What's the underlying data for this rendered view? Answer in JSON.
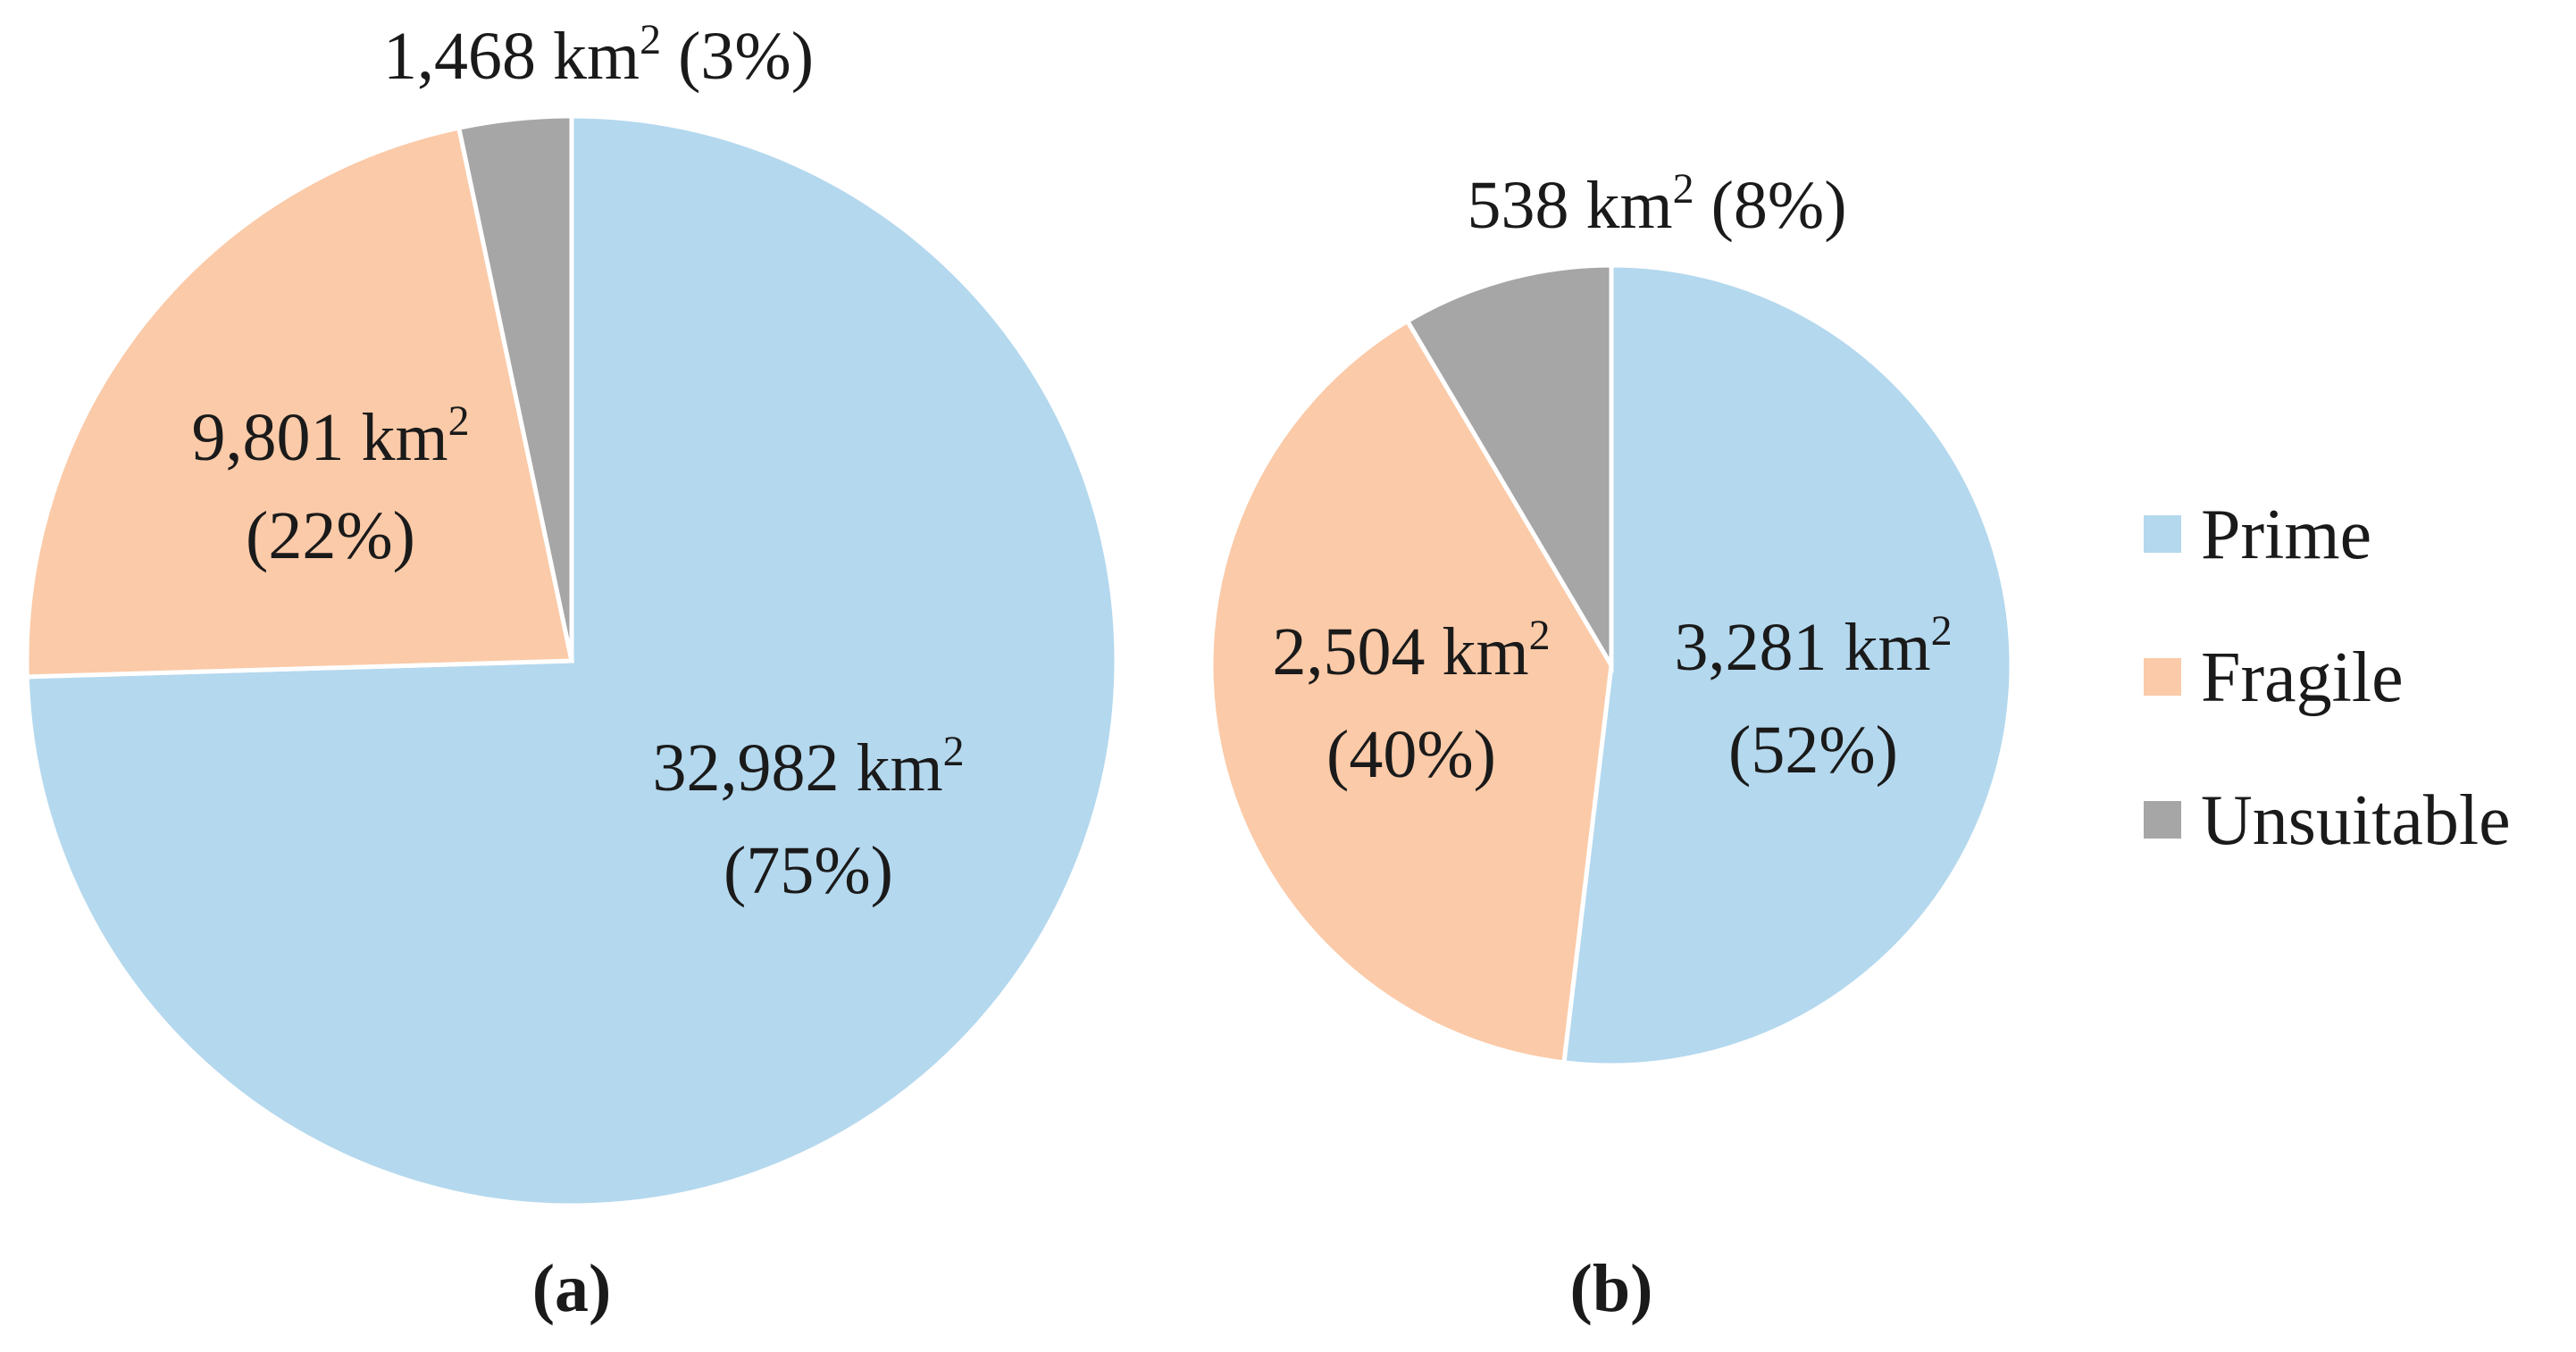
{
  "chart_data": [
    {
      "type": "pie",
      "caption": "(a)",
      "unit": "km",
      "unit_exponent": "2",
      "slices": [
        {
          "name": "Prime",
          "value": 32982,
          "value_label": "32,982",
          "percent_label": "(75%)",
          "color": "#b4d8ee"
        },
        {
          "name": "Fragile",
          "value": 9801,
          "value_label": "9,801",
          "percent_label": "(22%)",
          "color": "#fbcaa8"
        },
        {
          "name": "Unsuitable",
          "value": 1468,
          "value_label": "1,468",
          "percent_label": "(3%)",
          "color": "#a6a6a6"
        }
      ]
    },
    {
      "type": "pie",
      "caption": "(b)",
      "unit": "km",
      "unit_exponent": "2",
      "slices": [
        {
          "name": "Prime",
          "value": 3281,
          "value_label": "3,281",
          "percent_label": "(52%)",
          "color": "#b4d8ee"
        },
        {
          "name": "Fragile",
          "value": 2504,
          "value_label": "2,504",
          "percent_label": "(40%)",
          "color": "#fbcaa8"
        },
        {
          "name": "Unsuitable",
          "value": 538,
          "value_label": "538",
          "percent_label": "(8%)",
          "color": "#a6a6a6"
        }
      ]
    }
  ],
  "legend": [
    {
      "label": "Prime",
      "color": "#b4d8ee"
    },
    {
      "label": "Fragile",
      "color": "#fbcaa8"
    },
    {
      "label": "Unsuitable",
      "color": "#a6a6a6"
    }
  ]
}
